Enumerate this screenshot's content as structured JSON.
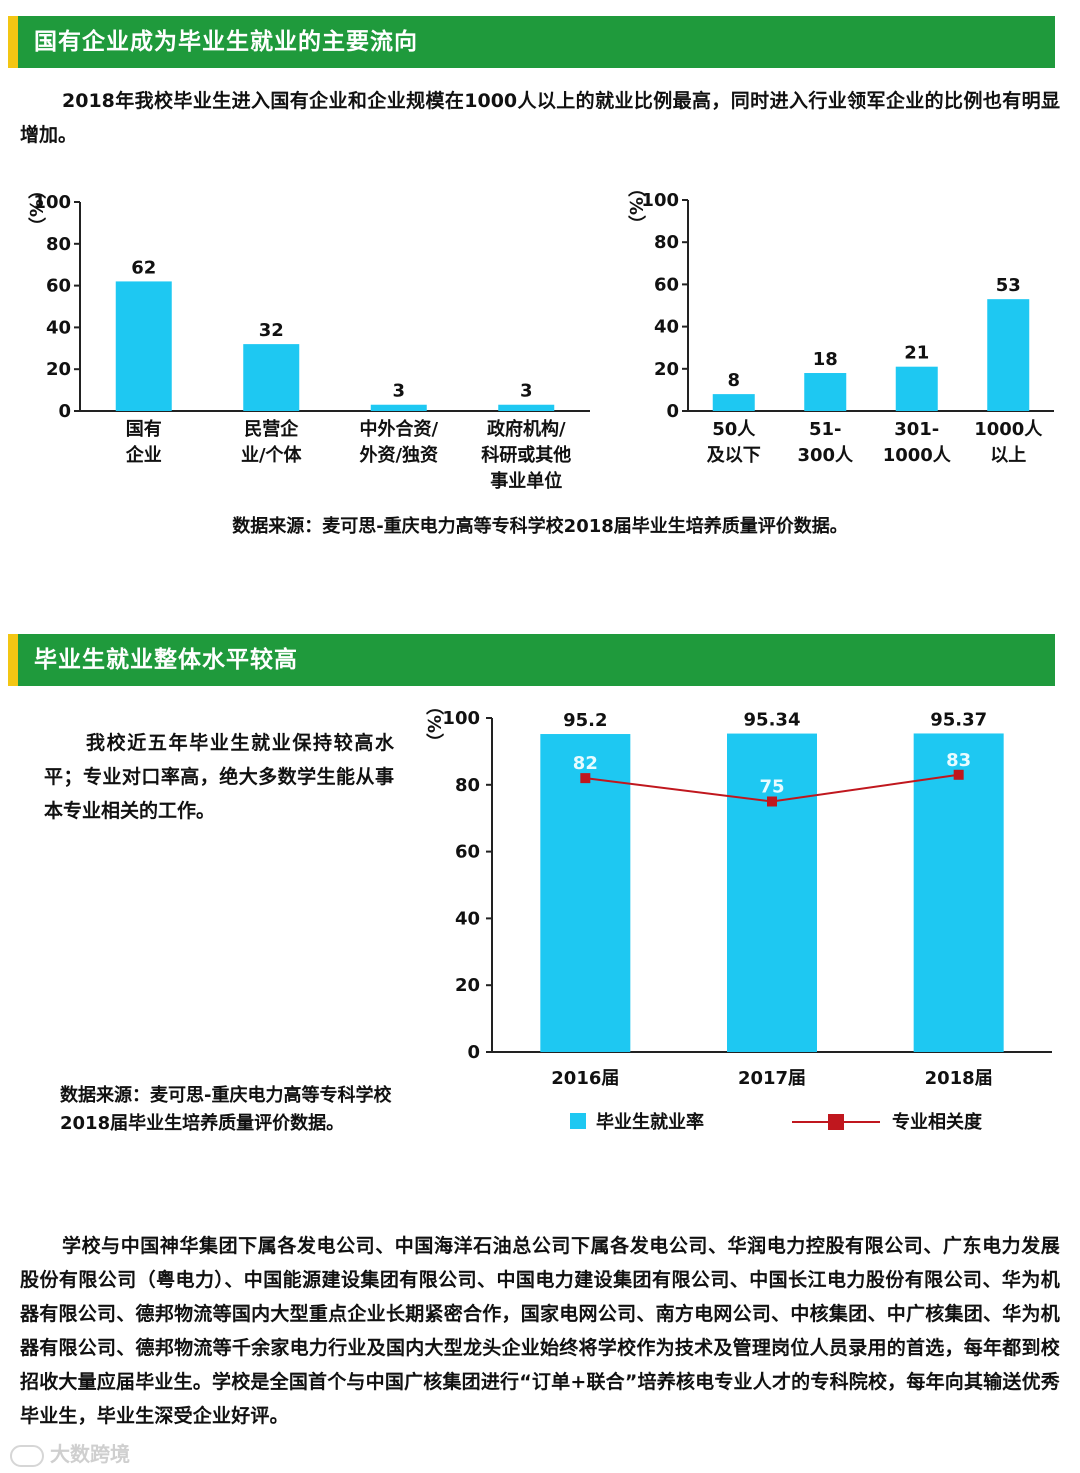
{
  "sections": {
    "first": {
      "title": "国有企业成为毕业生就业的主要流向"
    },
    "second": {
      "title": "毕业生就业整体水平较高"
    }
  },
  "intro": "2018年我校毕业生进入国有企业和企业规模在1000人以上的就业比例最高，同时进入行业领军企业的比例也有明显增加。",
  "source_1": "数据来源：麦可思-重庆电力高等专科学校2018届毕业生培养质量评价数据。",
  "left_text": "我校近五年毕业生就业保持较高水平；专业对口率高，绝大多数学生能从事本专业相关的工作。",
  "source_2": [
    "数据来源：麦可思-重庆电力高等专科学校",
    "2018届毕业生培养质量评价数据。"
  ],
  "bottom_text": "学校与中国神华集团下属各发电公司、中国海洋石油总公司下属各发电公司、华润电力控股有限公司、广东电力发展股份有限公司（粤电力）、中国能源建设集团有限公司、中国电力建设集团有限公司、中国长江电力股份有限公司、华为机器有限公司、德邦物流等国内大型重点企业长期紧密合作，国家电网公司、南方电网公司、中核集团、中广核集团、华为机器有限公司、德邦物流等千余家电力行业及国内大型龙头企业始终将学校作为技术及管理岗位人员录用的首选，每年都到校招收大量应届毕业生。学校是全国首个与中国广核集团进行“订单+联合”培养核电专业人才的专科院校，每年向其输送优秀毕业生，毕业生深受企业好评。",
  "watermark": "大数跨境",
  "colors": {
    "header": "#1f9a3c",
    "accent": "#f3c613",
    "bar": "#1ec8f2",
    "line": "#c0171e"
  },
  "chart_data": [
    {
      "type": "bar",
      "ylabel": "（%）",
      "ylim": [
        0,
        100
      ],
      "yticks": [
        0,
        20,
        40,
        60,
        80,
        100
      ],
      "categories": [
        [
          "国有",
          "企业"
        ],
        [
          "民营企",
          "业/个体"
        ],
        [
          "中外合资/",
          "外资/独资"
        ],
        [
          "政府机构/",
          "科研或其他",
          "事业单位"
        ]
      ],
      "values": [
        62,
        32,
        3,
        3
      ]
    },
    {
      "type": "bar",
      "ylabel": "（%）",
      "ylim": [
        0,
        100
      ],
      "yticks": [
        0,
        20,
        40,
        60,
        80,
        100
      ],
      "categories": [
        [
          "50人",
          "及以下"
        ],
        [
          "51-",
          "300人"
        ],
        [
          "301-",
          "1000人"
        ],
        [
          "1000人",
          "以上"
        ]
      ],
      "values": [
        8,
        18,
        21,
        53
      ]
    },
    {
      "type": "bar+line",
      "ylabel": "（%）",
      "ylim": [
        0,
        100
      ],
      "yticks": [
        0,
        20,
        40,
        60,
        80,
        100
      ],
      "categories": [
        "2016届",
        "2017届",
        "2018届"
      ],
      "series": [
        {
          "name": "毕业生就业率",
          "type": "bar",
          "values": [
            95.2,
            95.34,
            95.37
          ]
        },
        {
          "name": "专业相关度",
          "type": "line",
          "values": [
            82,
            75,
            83
          ]
        }
      ],
      "legend": "bottom"
    }
  ]
}
